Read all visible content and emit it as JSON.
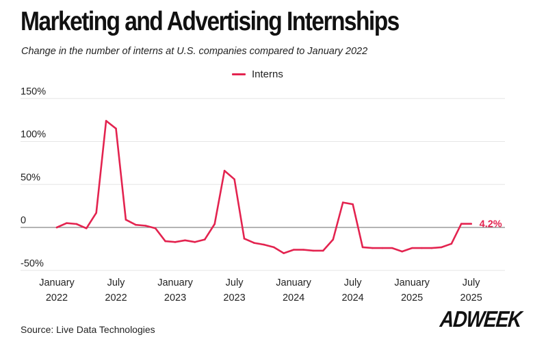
{
  "header": {
    "title": "Marketing and Advertising Internships",
    "subtitle": "Change in the number of interns at U.S. companies compared to January 2022"
  },
  "footer": {
    "source": "Source: Live Data Technologies",
    "logo_text": "ADWEEK"
  },
  "colors": {
    "series": "#e3234f",
    "grid": "#e6e6e6",
    "zero_line": "#888888",
    "text": "#222222"
  },
  "chart_data": {
    "type": "line",
    "title": "Marketing and Advertising Internships",
    "subtitle": "Change in the number of interns at U.S. companies compared to January 2022",
    "xlabel": "",
    "ylabel": "",
    "ylim": [
      -50,
      150
    ],
    "xlim": [
      "2022-01",
      "2025-08"
    ],
    "y_ticks": [
      {
        "value": 150,
        "label": "150%"
      },
      {
        "value": 100,
        "label": "100%"
      },
      {
        "value": 50,
        "label": "50%"
      },
      {
        "value": 0,
        "label": "0"
      },
      {
        "value": -50,
        "label": "-50%"
      }
    ],
    "x_ticks": [
      {
        "x": "2022-01",
        "line1": "January",
        "line2": "2022"
      },
      {
        "x": "2022-07",
        "line1": "July",
        "line2": "2022"
      },
      {
        "x": "2023-01",
        "line1": "January",
        "line2": "2023"
      },
      {
        "x": "2023-07",
        "line1": "July",
        "line2": "2023"
      },
      {
        "x": "2024-01",
        "line1": "January",
        "line2": "2024"
      },
      {
        "x": "2024-07",
        "line1": "July",
        "line2": "2024"
      },
      {
        "x": "2025-01",
        "line1": "January",
        "line2": "2025"
      },
      {
        "x": "2025-07",
        "line1": "July",
        "line2": "2025"
      }
    ],
    "grid": true,
    "legend": "top-center",
    "series": [
      {
        "name": "Interns",
        "x": [
          "2022-01",
          "2022-02",
          "2022-03",
          "2022-04",
          "2022-05",
          "2022-06",
          "2022-07",
          "2022-08",
          "2022-09",
          "2022-10",
          "2022-11",
          "2022-12",
          "2023-01",
          "2023-02",
          "2023-03",
          "2023-04",
          "2023-05",
          "2023-06",
          "2023-07",
          "2023-08",
          "2023-09",
          "2023-10",
          "2023-11",
          "2023-12",
          "2024-01",
          "2024-02",
          "2024-03",
          "2024-04",
          "2024-05",
          "2024-06",
          "2024-07",
          "2024-08",
          "2024-09",
          "2024-10",
          "2024-11",
          "2024-12",
          "2025-01",
          "2025-02",
          "2025-03",
          "2025-04",
          "2025-05",
          "2025-06",
          "2025-07"
        ],
        "values": [
          0,
          5,
          4,
          -1,
          17,
          124,
          115,
          9,
          3,
          2,
          -1,
          -16,
          -17,
          -15,
          -17,
          -14,
          4,
          66,
          56,
          -13,
          -18,
          -20,
          -23,
          -30,
          -26,
          -26,
          -27,
          -27,
          -14,
          29,
          27,
          -23,
          -24,
          -24,
          -24,
          -28,
          -24,
          -24,
          -24,
          -23,
          -19,
          4.2,
          4.2
        ]
      }
    ],
    "annotations": [
      {
        "x": "2025-07",
        "y": 4.2,
        "text": "4.2%"
      }
    ]
  }
}
